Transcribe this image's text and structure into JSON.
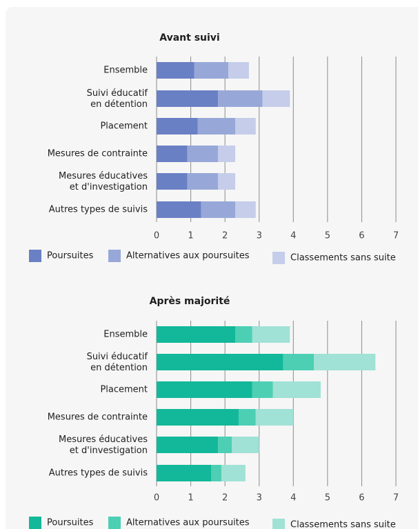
{
  "chart_data": [
    {
      "type": "barh",
      "title": "Avant suivi",
      "categories": [
        "Ensemble",
        "Suivi éducatif\nen détention",
        "Placement",
        "Mesures de contrainte",
        "Mesures éducatives\net d'investigation",
        "Autres types de suivis"
      ],
      "series": [
        {
          "name": "Poursuites",
          "color": "#6a80c4",
          "values": [
            1.1,
            1.8,
            1.2,
            0.9,
            0.9,
            1.3
          ]
        },
        {
          "name": "Alternatives aux poursuites",
          "color": "#97a8d8",
          "values": [
            1.0,
            1.3,
            1.1,
            0.9,
            0.9,
            1.0
          ]
        },
        {
          "name": "Classements sans suite",
          "color": "#c5cdea",
          "values": [
            0.6,
            0.8,
            0.6,
            0.5,
            0.5,
            0.6
          ]
        }
      ],
      "xlim": [
        0,
        7
      ],
      "xticks": [
        0,
        1,
        2,
        3,
        4,
        5,
        6,
        7
      ],
      "grid": true
    },
    {
      "type": "barh",
      "title": "Après majorité",
      "categories": [
        "Ensemble",
        "Suivi éducatif\nen détention",
        "Placement",
        "Mesures de contrainte",
        "Mesures éducatives\net d'investigation",
        "Autres types de suivis"
      ],
      "series": [
        {
          "name": "Poursuites",
          "color": "#12b899",
          "values": [
            2.3,
            3.7,
            2.8,
            2.4,
            1.8,
            1.6
          ]
        },
        {
          "name": "Alternatives aux poursuites",
          "color": "#4dcfb4",
          "values": [
            0.5,
            0.9,
            0.6,
            0.5,
            0.4,
            0.3
          ]
        },
        {
          "name": "Classements sans suite",
          "color": "#a0e2d5",
          "values": [
            1.1,
            1.8,
            1.4,
            1.1,
            0.8,
            0.7
          ]
        }
      ],
      "xlim": [
        0,
        7
      ],
      "xticks": [
        0,
        1,
        2,
        3,
        4,
        5,
        6,
        7
      ],
      "grid": true
    }
  ]
}
